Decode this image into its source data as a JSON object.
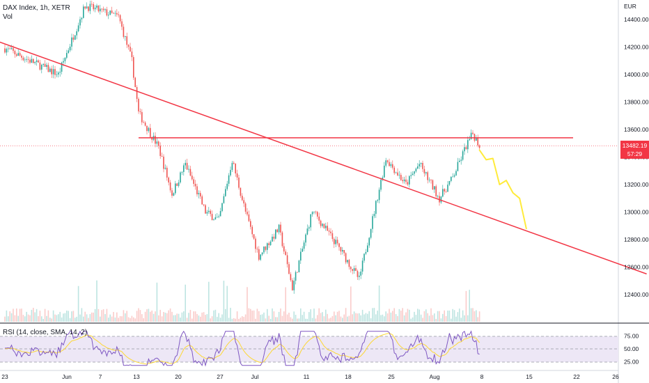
{
  "header": {
    "symbol_title": "DAX Index, 1h, XETR",
    "volume_label": "Vol"
  },
  "price_axis": {
    "currency": "EUR",
    "ticks": [
      "14400.00",
      "14200.00",
      "14000.00",
      "13800.00",
      "13600.00",
      "13400.00",
      "13200.00",
      "13000.00",
      "12800.00",
      "12600.00",
      "12400.00"
    ]
  },
  "last_price": {
    "value": "13482.19",
    "countdown": "57:29"
  },
  "rsi": {
    "label": "RSI (14, close, SMA, 14, 2)",
    "ticks": [
      "75.00",
      "50.00",
      "25.00"
    ]
  },
  "time_axis": {
    "ticks": [
      "23",
      "Jun",
      "7",
      "13",
      "20",
      "27",
      "Jul",
      "11",
      "18",
      "25",
      "Aug",
      "8",
      "15",
      "22",
      "26"
    ]
  },
  "colors": {
    "up": "#26a69a",
    "down": "#ef5350",
    "trendline": "#f23645",
    "forecast": "#ffeb3b",
    "rsi_line": "#7e57c2",
    "rsi_ma": "#fdd835",
    "rsi_band": "#ede7f6"
  },
  "chart_data": {
    "type": "candlestick",
    "title": "DAX Index, 1h, XETR",
    "ylim": [
      12300,
      14550
    ],
    "trend_anchors": [
      {
        "date": "2020-05-23",
        "price": 14190
      },
      {
        "date": "2020-05-31",
        "price": 14000
      },
      {
        "date": "2020-06-04",
        "price": 14500
      },
      {
        "date": "2020-06-09",
        "price": 14420
      },
      {
        "date": "2020-06-11",
        "price": 14100
      },
      {
        "date": "2020-06-12",
        "price": 13720
      },
      {
        "date": "2020-06-15",
        "price": 13470
      },
      {
        "date": "2020-06-17",
        "price": 13130
      },
      {
        "date": "2020-06-19",
        "price": 13350
      },
      {
        "date": "2020-06-22",
        "price": 13000
      },
      {
        "date": "2020-06-24",
        "price": 12940
      },
      {
        "date": "2020-06-26",
        "price": 13380
      },
      {
        "date": "2020-06-28",
        "price": 13000
      },
      {
        "date": "2020-06-30",
        "price": 12680
      },
      {
        "date": "2020-07-03",
        "price": 12880
      },
      {
        "date": "2020-07-05",
        "price": 12450
      },
      {
        "date": "2020-07-08",
        "price": 13010
      },
      {
        "date": "2020-07-12",
        "price": 12740
      },
      {
        "date": "2020-07-15",
        "price": 12510
      },
      {
        "date": "2020-07-17",
        "price": 12950
      },
      {
        "date": "2020-07-19",
        "price": 13390
      },
      {
        "date": "2020-07-22",
        "price": 13200
      },
      {
        "date": "2020-07-24",
        "price": 13350
      },
      {
        "date": "2020-07-27",
        "price": 13100
      },
      {
        "date": "2020-07-29",
        "price": 13250
      },
      {
        "date": "2020-07-31",
        "price": 13480
      },
      {
        "date": "2020-08-01",
        "price": 13570
      },
      {
        "date": "2020-08-02",
        "price": 13482
      }
    ],
    "horizontal_level": 13540,
    "descending_trendline": [
      {
        "date": "2020-05-22",
        "price": 14240
      },
      {
        "date": "2020-08-27",
        "price": 12550
      }
    ],
    "forecast_path": [
      {
        "date": "2020-08-02",
        "price": 13450
      },
      {
        "date": "2020-08-03",
        "price": 13380
      },
      {
        "date": "2020-08-04",
        "price": 13390
      },
      {
        "date": "2020-08-05",
        "price": 13200
      },
      {
        "date": "2020-08-06",
        "price": 13230
      },
      {
        "date": "2020-08-07",
        "price": 13140
      },
      {
        "date": "2020-08-08",
        "price": 13100
      },
      {
        "date": "2020-08-09",
        "price": 12880
      }
    ]
  }
}
